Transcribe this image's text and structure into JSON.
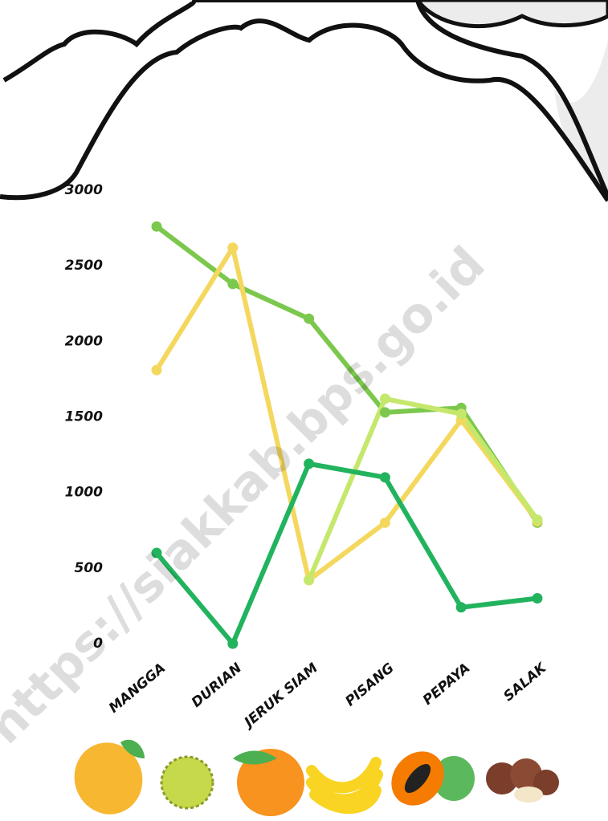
{
  "chart_data": {
    "type": "line",
    "categories": [
      "MANGGA",
      "DURIAN",
      "JERUK SIAM",
      "PISANG",
      "PEPAYA",
      "SALAK"
    ],
    "series": [
      {
        "color": "#7cc84e",
        "values": [
          2760,
          2380,
          2150,
          1530,
          1560,
          800
        ]
      },
      {
        "color": "#f4d85e",
        "values": [
          1810,
          2620,
          420,
          800,
          1480,
          810
        ]
      },
      {
        "color": "#c5e86c",
        "values": [
          null,
          null,
          420,
          1620,
          1520,
          820
        ]
      },
      {
        "color": "#22b35e",
        "values": [
          600,
          0,
          1190,
          1100,
          240,
          300
        ]
      }
    ],
    "ylim": [
      0,
      3000
    ],
    "yticks": [
      0,
      500,
      1000,
      1500,
      2000,
      2500,
      3000
    ],
    "grid": false,
    "watermark": "https://siakkab.bps.go.id"
  }
}
